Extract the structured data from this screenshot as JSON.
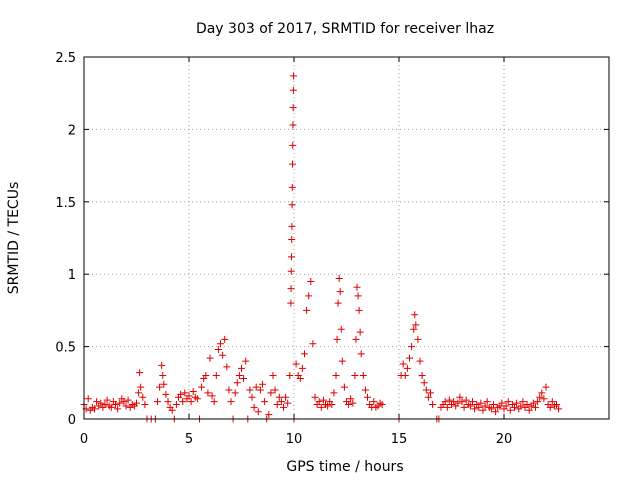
{
  "chart_data": {
    "type": "scatter",
    "title": "Day 303 of 2017, SRMTID for receiver lhaz",
    "xlabel": "GPS time / hours",
    "ylabel": "SRMTID / TECUs",
    "xlim": [
      0,
      25
    ],
    "ylim": [
      0,
      2.5
    ],
    "xticks": [
      0,
      5,
      10,
      15,
      20
    ],
    "xtick_labels": [
      "0",
      "5",
      "10",
      "15",
      "20"
    ],
    "yticks": [
      0,
      0.5,
      1,
      1.5,
      2,
      2.5
    ],
    "ytick_labels": [
      "0",
      "0.5",
      "1",
      "1.5",
      "2",
      "2.5"
    ],
    "grid": true,
    "marker": "+",
    "series": [
      {
        "name": "SRMTID",
        "color": "#e00000",
        "points": [
          [
            0.0,
            0.1
          ],
          [
            0.1,
            0.07
          ],
          [
            0.2,
            0.14
          ],
          [
            0.3,
            0.06
          ],
          [
            0.4,
            0.08
          ],
          [
            0.5,
            0.07
          ],
          [
            0.6,
            0.12
          ],
          [
            0.7,
            0.09
          ],
          [
            0.8,
            0.11
          ],
          [
            0.9,
            0.08
          ],
          [
            1.0,
            0.1
          ],
          [
            1.1,
            0.13
          ],
          [
            1.2,
            0.09
          ],
          [
            1.3,
            0.08
          ],
          [
            1.4,
            0.12
          ],
          [
            1.5,
            0.1
          ],
          [
            1.6,
            0.07
          ],
          [
            1.7,
            0.11
          ],
          [
            1.8,
            0.14
          ],
          [
            1.9,
            0.12
          ],
          [
            2.0,
            0.09
          ],
          [
            2.1,
            0.13
          ],
          [
            2.2,
            0.08
          ],
          [
            2.3,
            0.1
          ],
          [
            2.4,
            0.09
          ],
          [
            2.5,
            0.11
          ],
          [
            2.6,
            0.18
          ],
          [
            2.65,
            0.32
          ],
          [
            2.7,
            0.22
          ],
          [
            2.8,
            0.15
          ],
          [
            2.9,
            0.1
          ],
          [
            3.0,
            0.0
          ],
          [
            3.2,
            0.0
          ],
          [
            3.4,
            0.0
          ],
          [
            3.5,
            0.12
          ],
          [
            3.6,
            0.22
          ],
          [
            3.7,
            0.37
          ],
          [
            3.75,
            0.3
          ],
          [
            3.8,
            0.24
          ],
          [
            3.9,
            0.17
          ],
          [
            4.0,
            0.12
          ],
          [
            4.1,
            0.08
          ],
          [
            4.2,
            0.06
          ],
          [
            4.3,
            0.0
          ],
          [
            4.4,
            0.1
          ],
          [
            4.5,
            0.15
          ],
          [
            4.6,
            0.17
          ],
          [
            4.7,
            0.12
          ],
          [
            4.8,
            0.18
          ],
          [
            4.9,
            0.14
          ],
          [
            5.0,
            0.16
          ],
          [
            5.1,
            0.12
          ],
          [
            5.2,
            0.19
          ],
          [
            5.3,
            0.15
          ],
          [
            5.4,
            0.14
          ],
          [
            5.5,
            0.0
          ],
          [
            5.6,
            0.22
          ],
          [
            5.7,
            0.28
          ],
          [
            5.8,
            0.3
          ],
          [
            5.9,
            0.18
          ],
          [
            6.0,
            0.42
          ],
          [
            6.1,
            0.16
          ],
          [
            6.2,
            0.12
          ],
          [
            6.3,
            0.3
          ],
          [
            6.4,
            0.48
          ],
          [
            6.5,
            0.52
          ],
          [
            6.6,
            0.44
          ],
          [
            6.7,
            0.55
          ],
          [
            6.8,
            0.36
          ],
          [
            6.9,
            0.2
          ],
          [
            7.0,
            0.12
          ],
          [
            7.1,
            0.0
          ],
          [
            7.2,
            0.18
          ],
          [
            7.3,
            0.25
          ],
          [
            7.4,
            0.3
          ],
          [
            7.5,
            0.35
          ],
          [
            7.6,
            0.28
          ],
          [
            7.7,
            0.4
          ],
          [
            7.8,
            0.0
          ],
          [
            7.9,
            0.2
          ],
          [
            8.0,
            0.15
          ],
          [
            8.1,
            0.08
          ],
          [
            8.2,
            0.22
          ],
          [
            8.3,
            0.05
          ],
          [
            8.4,
            0.2
          ],
          [
            8.5,
            0.24
          ],
          [
            8.6,
            0.12
          ],
          [
            8.7,
            0.0
          ],
          [
            8.8,
            0.03
          ],
          [
            8.9,
            0.18
          ],
          [
            9.0,
            0.3
          ],
          [
            9.1,
            0.2
          ],
          [
            9.2,
            0.1
          ],
          [
            9.3,
            0.15
          ],
          [
            9.4,
            0.12
          ],
          [
            9.5,
            0.08
          ],
          [
            9.6,
            0.15
          ],
          [
            9.7,
            0.11
          ],
          [
            9.8,
            0.3
          ],
          [
            9.85,
            0.8
          ],
          [
            9.86,
            0.9
          ],
          [
            9.87,
            1.02
          ],
          [
            9.88,
            1.12
          ],
          [
            9.89,
            1.24
          ],
          [
            9.9,
            1.33
          ],
          [
            9.91,
            1.48
          ],
          [
            9.92,
            1.6
          ],
          [
            9.93,
            1.76
          ],
          [
            9.94,
            1.89
          ],
          [
            9.95,
            2.03
          ],
          [
            9.96,
            2.15
          ],
          [
            9.97,
            2.27
          ],
          [
            9.98,
            2.37
          ],
          [
            10.0,
            0.0
          ],
          [
            10.1,
            0.38
          ],
          [
            10.2,
            0.3
          ],
          [
            10.3,
            0.28
          ],
          [
            10.4,
            0.35
          ],
          [
            10.5,
            0.45
          ],
          [
            10.6,
            0.75
          ],
          [
            10.7,
            0.85
          ],
          [
            10.8,
            0.95
          ],
          [
            10.9,
            0.52
          ],
          [
            11.0,
            0.15
          ],
          [
            11.1,
            0.1
          ],
          [
            11.2,
            0.12
          ],
          [
            11.3,
            0.08
          ],
          [
            11.4,
            0.13
          ],
          [
            11.5,
            0.1
          ],
          [
            11.6,
            0.09
          ],
          [
            11.7,
            0.12
          ],
          [
            11.8,
            0.1
          ],
          [
            11.9,
            0.18
          ],
          [
            12.0,
            0.3
          ],
          [
            12.05,
            0.55
          ],
          [
            12.1,
            0.8
          ],
          [
            12.15,
            0.97
          ],
          [
            12.2,
            0.88
          ],
          [
            12.25,
            0.62
          ],
          [
            12.3,
            0.4
          ],
          [
            12.4,
            0.22
          ],
          [
            12.5,
            0.12
          ],
          [
            12.6,
            0.1
          ],
          [
            12.7,
            0.14
          ],
          [
            12.8,
            0.11
          ],
          [
            12.9,
            0.3
          ],
          [
            12.95,
            0.55
          ],
          [
            13.0,
            0.91
          ],
          [
            13.05,
            0.85
          ],
          [
            13.1,
            0.75
          ],
          [
            13.15,
            0.6
          ],
          [
            13.2,
            0.45
          ],
          [
            13.3,
            0.3
          ],
          [
            13.4,
            0.2
          ],
          [
            13.5,
            0.15
          ],
          [
            13.6,
            0.1
          ],
          [
            13.7,
            0.08
          ],
          [
            13.8,
            0.12
          ],
          [
            13.9,
            0.08
          ],
          [
            14.0,
            0.09
          ],
          [
            14.1,
            0.11
          ],
          [
            14.2,
            0.1
          ],
          [
            15.0,
            0.0
          ],
          [
            15.1,
            0.3
          ],
          [
            15.2,
            0.38
          ],
          [
            15.3,
            0.3
          ],
          [
            15.4,
            0.35
          ],
          [
            15.5,
            0.42
          ],
          [
            15.6,
            0.5
          ],
          [
            15.7,
            0.62
          ],
          [
            15.75,
            0.72
          ],
          [
            15.8,
            0.65
          ],
          [
            15.9,
            0.55
          ],
          [
            16.0,
            0.4
          ],
          [
            16.1,
            0.3
          ],
          [
            16.2,
            0.25
          ],
          [
            16.3,
            0.2
          ],
          [
            16.4,
            0.15
          ],
          [
            16.5,
            0.18
          ],
          [
            16.6,
            0.1
          ],
          [
            16.8,
            0.0
          ],
          [
            16.9,
            0.0
          ],
          [
            17.0,
            0.08
          ],
          [
            17.1,
            0.1
          ],
          [
            17.2,
            0.12
          ],
          [
            17.3,
            0.08
          ],
          [
            17.4,
            0.13
          ],
          [
            17.5,
            0.1
          ],
          [
            17.6,
            0.12
          ],
          [
            17.7,
            0.09
          ],
          [
            17.8,
            0.11
          ],
          [
            17.9,
            0.15
          ],
          [
            18.0,
            0.12
          ],
          [
            18.1,
            0.08
          ],
          [
            18.2,
            0.13
          ],
          [
            18.3,
            0.1
          ],
          [
            18.4,
            0.09
          ],
          [
            18.5,
            0.12
          ],
          [
            18.6,
            0.07
          ],
          [
            18.7,
            0.1
          ],
          [
            18.8,
            0.08
          ],
          [
            18.9,
            0.11
          ],
          [
            19.0,
            0.06
          ],
          [
            19.1,
            0.09
          ],
          [
            19.2,
            0.12
          ],
          [
            19.3,
            0.08
          ],
          [
            19.4,
            0.07
          ],
          [
            19.5,
            0.1
          ],
          [
            19.6,
            0.05
          ],
          [
            19.7,
            0.08
          ],
          [
            19.8,
            0.09
          ],
          [
            19.9,
            0.11
          ],
          [
            20.0,
            0.07
          ],
          [
            20.1,
            0.09
          ],
          [
            20.2,
            0.12
          ],
          [
            20.3,
            0.06
          ],
          [
            20.4,
            0.1
          ],
          [
            20.5,
            0.08
          ],
          [
            20.6,
            0.11
          ],
          [
            20.7,
            0.07
          ],
          [
            20.8,
            0.09
          ],
          [
            20.9,
            0.12
          ],
          [
            21.0,
            0.08
          ],
          [
            21.1,
            0.1
          ],
          [
            21.2,
            0.06
          ],
          [
            21.3,
            0.09
          ],
          [
            21.4,
            0.11
          ],
          [
            21.5,
            0.08
          ],
          [
            21.6,
            0.12
          ],
          [
            21.7,
            0.15
          ],
          [
            21.8,
            0.18
          ],
          [
            21.9,
            0.14
          ],
          [
            22.0,
            0.22
          ],
          [
            22.1,
            0.1
          ],
          [
            22.2,
            0.08
          ],
          [
            22.3,
            0.12
          ],
          [
            22.4,
            0.09
          ],
          [
            22.5,
            0.1
          ],
          [
            22.6,
            0.07
          ]
        ]
      }
    ]
  }
}
